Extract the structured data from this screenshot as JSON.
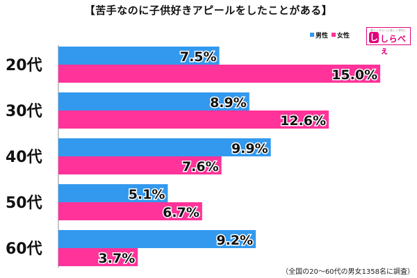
{
  "title": "【苦手なのに子供好きアピールをしたことがある】",
  "legend": [
    {
      "label": "男性",
      "color": "#3399ee"
    },
    {
      "label": "女性",
      "color": "#ff3399"
    }
  ],
  "logo": {
    "tagline": "暮らしをもっと楽しく便利に",
    "mark": "し",
    "name": "しらべぇ"
  },
  "footnote": "（全国の20〜60代の男女1358名に調査）",
  "chart_data": {
    "type": "bar",
    "orientation": "horizontal",
    "title": "【苦手なのに子供好きアピールをしたことがある】",
    "categories": [
      "20代",
      "30代",
      "40代",
      "50代",
      "60代"
    ],
    "series": [
      {
        "name": "男性",
        "values": [
          7.5,
          8.9,
          9.9,
          5.1,
          9.2
        ],
        "labels": [
          "7.5%",
          "8.9%",
          "9.9%",
          "5.1%",
          "9.2%"
        ]
      },
      {
        "name": "女性",
        "values": [
          15.0,
          12.6,
          7.6,
          6.7,
          3.7
        ],
        "labels": [
          "15.0%",
          "12.6%",
          "7.6%",
          "6.7%",
          "3.7%"
        ]
      }
    ],
    "xlim": [
      0,
      16
    ],
    "grid": false,
    "legend_position": "top-right"
  }
}
